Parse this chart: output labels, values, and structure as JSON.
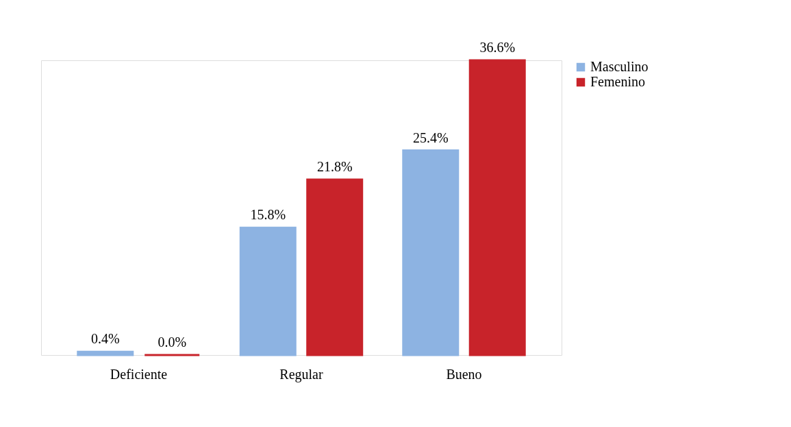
{
  "chart_data": {
    "type": "bar",
    "categories": [
      "Deficiente",
      "Regular",
      "Bueno"
    ],
    "series": [
      {
        "name": "Masculino",
        "color": "#8db3e2",
        "values": [
          0.4,
          15.8,
          25.4
        ],
        "value_labels": [
          "0.4%",
          "15.8%",
          "25.4%"
        ]
      },
      {
        "name": "Femenino",
        "color": "#c8232a",
        "values": [
          0.0,
          21.8,
          36.6
        ],
        "value_labels": [
          "0.0%",
          "21.8%",
          "36.6%"
        ]
      }
    ],
    "legend": "right",
    "grid": false
  }
}
